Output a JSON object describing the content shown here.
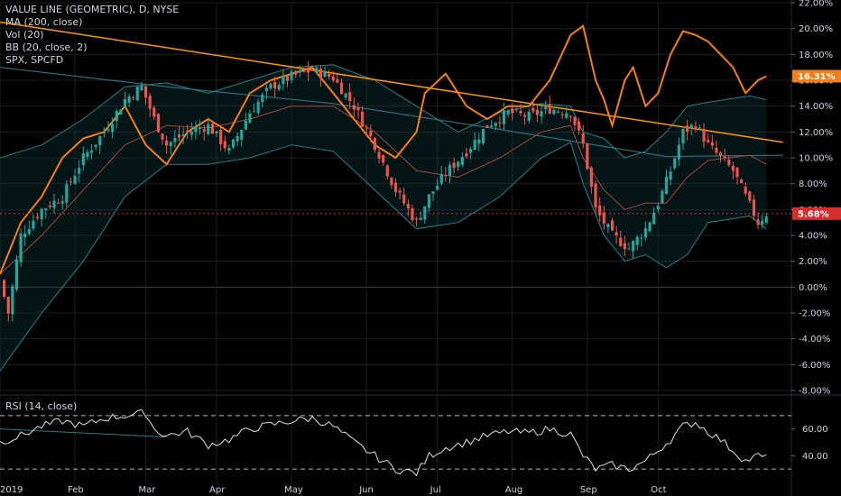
{
  "legend": {
    "title": "VALUE LINE (GEOMETRIC), D, NYSE",
    "ma": "MA (200, close)",
    "vol": "Vol (20)",
    "bb": "BB (20, close, 2)",
    "compare": "SPX, SPCFD"
  },
  "rsi_title": "RSI (14, close)",
  "colors": {
    "background": "#000000",
    "grid": "#1e1e1e",
    "up": "#26a69a",
    "down": "#ef5350",
    "spx": "#f57f17",
    "trendline": "#ff9800",
    "bb": "#2e7d84",
    "ma": "#2e6f7a",
    "basis": "#a3473a",
    "rsi": "#e0e0e0",
    "current_badge": "#d32f2f",
    "spx_badge": "#f57f17"
  },
  "chart_data": [
    {
      "type": "candlestick",
      "ylim": [
        -8,
        22
      ],
      "y_ticks": [
        "22.00%",
        "20.00%",
        "18.00%",
        "16.00%",
        "14.00%",
        "12.00%",
        "10.00%",
        "8.00%",
        "6.00%",
        "4.00%",
        "2.00%",
        "0.00%",
        "-2.00%",
        "-4.00%",
        "-6.00%",
        "-8.00%"
      ],
      "x_ticks": [
        "2019",
        "Feb",
        "Mar",
        "Apr",
        "May",
        "Jun",
        "Jul",
        "Aug",
        "Sep",
        "Oct"
      ],
      "current_value_label": "5.68%",
      "spx_value_label": "16.31%",
      "value_line_path": [
        [
          0,
          0.5
        ],
        [
          2,
          -2
        ],
        [
          5,
          4
        ],
        [
          10,
          6
        ],
        [
          15,
          7
        ],
        [
          20,
          10
        ],
        [
          25,
          12
        ],
        [
          30,
          14.5
        ],
        [
          34,
          15.5
        ],
        [
          37,
          13
        ],
        [
          40,
          11
        ],
        [
          45,
          12
        ],
        [
          50,
          12.5
        ],
        [
          55,
          10.5
        ],
        [
          60,
          13.5
        ],
        [
          65,
          15.5
        ],
        [
          70,
          16.3
        ],
        [
          75,
          16.8
        ],
        [
          80,
          16.2
        ],
        [
          85,
          14
        ],
        [
          90,
          11
        ],
        [
          95,
          7.5
        ],
        [
          100,
          5
        ],
        [
          103,
          7
        ],
        [
          107,
          8.8
        ],
        [
          112,
          10.5
        ],
        [
          117,
          12.5
        ],
        [
          122,
          13.5
        ],
        [
          127,
          13.2
        ],
        [
          132,
          13.8
        ],
        [
          137,
          13.5
        ],
        [
          140,
          11
        ],
        [
          143,
          6
        ],
        [
          147,
          4
        ],
        [
          151,
          3
        ],
        [
          155,
          4.5
        ],
        [
          158,
          6.5
        ],
        [
          161,
          9
        ],
        [
          164,
          12
        ],
        [
          167,
          12.6
        ],
        [
          170,
          11
        ],
        [
          173,
          10
        ],
        [
          176,
          9
        ],
        [
          179,
          7
        ],
        [
          182,
          5
        ],
        [
          184,
          5.68
        ]
      ],
      "spx_path": [
        [
          0,
          1
        ],
        [
          5,
          5
        ],
        [
          10,
          7
        ],
        [
          15,
          10
        ],
        [
          20,
          11.5
        ],
        [
          25,
          12
        ],
        [
          30,
          14
        ],
        [
          35,
          11
        ],
        [
          40,
          9.5
        ],
        [
          45,
          12
        ],
        [
          50,
          13
        ],
        [
          55,
          12
        ],
        [
          60,
          15
        ],
        [
          65,
          16
        ],
        [
          70,
          16.5
        ],
        [
          75,
          17
        ],
        [
          80,
          15
        ],
        [
          85,
          13
        ],
        [
          90,
          11
        ],
        [
          95,
          10
        ],
        [
          100,
          12
        ],
        [
          102,
          15
        ],
        [
          107,
          16.5
        ],
        [
          112,
          14
        ],
        [
          117,
          13
        ],
        [
          122,
          14
        ],
        [
          127,
          14
        ],
        [
          132,
          16
        ],
        [
          137,
          19.5
        ],
        [
          140,
          20.2
        ],
        [
          143,
          16
        ],
        [
          145,
          14.5
        ],
        [
          147,
          12.5
        ],
        [
          150,
          16
        ],
        [
          152,
          17
        ],
        [
          155,
          14
        ],
        [
          158,
          15
        ],
        [
          161,
          18
        ],
        [
          164,
          19.8
        ],
        [
          167,
          19.5
        ],
        [
          170,
          19
        ],
        [
          173,
          18
        ],
        [
          176,
          17
        ],
        [
          179,
          15
        ],
        [
          182,
          16
        ],
        [
          184,
          16.31
        ]
      ],
      "trendline": [
        [
          0,
          20.5
        ],
        [
          188,
          11.2
        ]
      ],
      "ma_path": [
        [
          0,
          17
        ],
        [
          40,
          15.5
        ],
        [
          80,
          14.2
        ],
        [
          120,
          12.2
        ],
        [
          160,
          10.1
        ],
        [
          188,
          10.2
        ]
      ],
      "bb_upper_path": [
        [
          0,
          10
        ],
        [
          10,
          11
        ],
        [
          20,
          13
        ],
        [
          30,
          15.5
        ],
        [
          40,
          15.8
        ],
        [
          50,
          15
        ],
        [
          60,
          16
        ],
        [
          70,
          17
        ],
        [
          80,
          17.2
        ],
        [
          90,
          16
        ],
        [
          100,
          14
        ],
        [
          110,
          12
        ],
        [
          120,
          13.5
        ],
        [
          130,
          14.2
        ],
        [
          137,
          14
        ],
        [
          140,
          12
        ],
        [
          145,
          11.5
        ],
        [
          150,
          10
        ],
        [
          155,
          10.5
        ],
        [
          160,
          12
        ],
        [
          165,
          14
        ],
        [
          170,
          14.3
        ],
        [
          180,
          14.8
        ],
        [
          184,
          14.5
        ]
      ],
      "bb_lower_path": [
        [
          0,
          -6.5
        ],
        [
          10,
          -2
        ],
        [
          20,
          2
        ],
        [
          30,
          7
        ],
        [
          40,
          9.5
        ],
        [
          50,
          9.5
        ],
        [
          60,
          10
        ],
        [
          70,
          11
        ],
        [
          80,
          10.5
        ],
        [
          90,
          7.5
        ],
        [
          100,
          4.5
        ],
        [
          110,
          5
        ],
        [
          120,
          7
        ],
        [
          130,
          10
        ],
        [
          137,
          11.2
        ],
        [
          140,
          8
        ],
        [
          145,
          4
        ],
        [
          150,
          2
        ],
        [
          155,
          2.5
        ],
        [
          160,
          1.5
        ],
        [
          165,
          2.5
        ],
        [
          170,
          5
        ],
        [
          180,
          5.5
        ],
        [
          184,
          4.5
        ]
      ],
      "bb_basis_path": [
        [
          0,
          1
        ],
        [
          10,
          4
        ],
        [
          20,
          7.5
        ],
        [
          30,
          11
        ],
        [
          40,
          12.5
        ],
        [
          50,
          12.3
        ],
        [
          60,
          13
        ],
        [
          70,
          14
        ],
        [
          80,
          14
        ],
        [
          90,
          12
        ],
        [
          100,
          9
        ],
        [
          110,
          8.5
        ],
        [
          120,
          10
        ],
        [
          130,
          12
        ],
        [
          137,
          12.5
        ],
        [
          140,
          10
        ],
        [
          145,
          7.5
        ],
        [
          150,
          6
        ],
        [
          155,
          6.5
        ],
        [
          160,
          6.5
        ],
        [
          165,
          8.5
        ],
        [
          170,
          9.8
        ],
        [
          180,
          10.2
        ],
        [
          184,
          9.5
        ]
      ]
    },
    {
      "type": "line",
      "name": "RSI",
      "ylim": [
        20,
        80
      ],
      "y_ticks": [
        "60.00",
        "40.00"
      ],
      "bands": [
        70,
        30
      ],
      "values": [
        [
          0,
          50
        ],
        [
          5,
          55
        ],
        [
          10,
          62
        ],
        [
          15,
          66
        ],
        [
          20,
          62
        ],
        [
          25,
          68
        ],
        [
          30,
          70
        ],
        [
          35,
          72
        ],
        [
          37,
          60
        ],
        [
          40,
          55
        ],
        [
          45,
          58
        ],
        [
          50,
          48
        ],
        [
          55,
          52
        ],
        [
          60,
          60
        ],
        [
          65,
          63
        ],
        [
          70,
          66
        ],
        [
          75,
          68
        ],
        [
          80,
          62
        ],
        [
          85,
          50
        ],
        [
          90,
          40
        ],
        [
          95,
          30
        ],
        [
          100,
          27
        ],
        [
          103,
          40
        ],
        [
          107,
          46
        ],
        [
          112,
          50
        ],
        [
          117,
          55
        ],
        [
          122,
          58
        ],
        [
          127,
          57
        ],
        [
          132,
          60
        ],
        [
          137,
          56
        ],
        [
          140,
          40
        ],
        [
          143,
          30
        ],
        [
          147,
          33
        ],
        [
          151,
          30
        ],
        [
          155,
          36
        ],
        [
          158,
          44
        ],
        [
          161,
          52
        ],
        [
          164,
          62
        ],
        [
          167,
          65
        ],
        [
          170,
          58
        ],
        [
          173,
          52
        ],
        [
          176,
          44
        ],
        [
          179,
          36
        ],
        [
          182,
          40
        ],
        [
          184,
          38
        ]
      ]
    }
  ]
}
